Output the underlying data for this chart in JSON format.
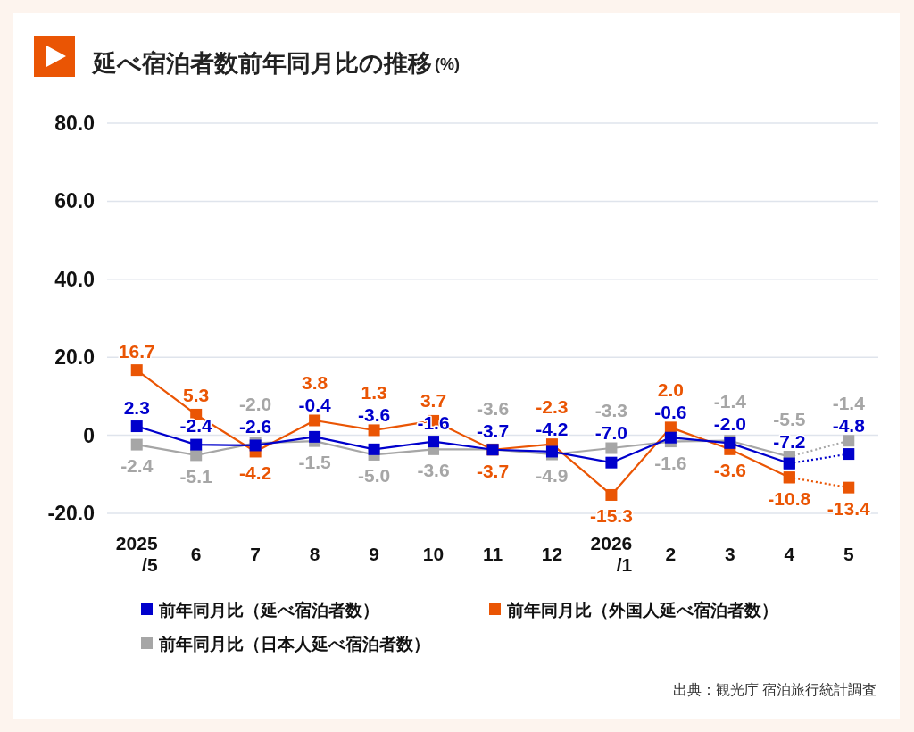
{
  "chart_data": {
    "type": "line",
    "title": "延べ宿泊者数前年同月比の推移",
    "subtitle": "(%)",
    "annotations": [
      "出典：観光庁 宿泊旅行統計調査"
    ],
    "categories": [
      "2025\n/5",
      "6",
      "7",
      "8",
      "9",
      "10",
      "11",
      "12",
      "2026\n/1",
      "2",
      "3",
      "4",
      "5"
    ],
    "ylim": [
      -20,
      80
    ],
    "yticks": [
      {
        "value": -20,
        "label": "-20.0"
      },
      0,
      {
        "value": 20,
        "label": "20.0"
      },
      {
        "value": 40,
        "label": "40.0"
      },
      {
        "value": 60,
        "label": "60.0"
      },
      {
        "value": 80,
        "label": "80.0"
      }
    ],
    "grid": "y",
    "legend": "bottom",
    "marker": "square",
    "line_style": "solid",
    "series": [
      {
        "name": "前年同月比（延べ宿泊者数）",
        "color": "#0000cc",
        "values": [
          2.3,
          -2.4,
          -2.6,
          -0.4,
          -3.6,
          -1.6,
          -3.7,
          -4.2,
          -7.0,
          -0.6,
          -2.0,
          -7.2,
          null
        ],
        "value_labels": [
          "2.3",
          "-2.4",
          "-2.6",
          "-0.4",
          "-3.6",
          "-1.6",
          "-3.7",
          "-4.2",
          "-7.0",
          "-0.6",
          "-2.0",
          "-7.2",
          null
        ]
      },
      {
        "name": "前年同月比（外国人延べ宿泊者数）",
        "color": "#ea5504",
        "values": [
          16.7,
          5.3,
          -4.2,
          3.8,
          1.3,
          3.7,
          -3.7,
          -2.3,
          -15.3,
          2.0,
          -3.6,
          -10.8,
          null
        ],
        "value_labels": [
          "16.7",
          "5.3",
          "-4.2",
          "3.8",
          "1.3",
          "3.7",
          "-3.7",
          "-2.3",
          "-15.3",
          "2.0",
          "-3.6",
          "-10.8",
          null
        ]
      },
      {
        "name": "前年同月比（日本人延べ宿泊者数）",
        "color": "#a6a6a6",
        "values": [
          -2.4,
          -5.1,
          -2.0,
          -1.5,
          -5.0,
          -3.6,
          -3.6,
          -4.9,
          -3.3,
          -1.6,
          -1.4,
          -5.5,
          null
        ],
        "value_labels": [
          "-2.4",
          "-5.1",
          "-2.0",
          "-1.5",
          "-5.0",
          "-3.6",
          "-3.6",
          "-4.9",
          "-3.3",
          "-1.6",
          "-1.4",
          "-5.5",
          null
        ]
      },
      {
        "color": "#0000cc",
        "values": [
          null,
          null,
          null,
          null,
          null,
          null,
          null,
          null,
          null,
          null,
          null,
          -7.2,
          -4.8
        ],
        "line_style": "dotted",
        "value_labels": [
          null,
          null,
          null,
          null,
          null,
          null,
          null,
          null,
          null,
          null,
          null,
          null,
          "-4.8"
        ]
      },
      {
        "color": "#ea5504",
        "values": [
          null,
          null,
          null,
          null,
          null,
          null,
          null,
          null,
          null,
          null,
          null,
          -10.8,
          -13.4
        ],
        "line_style": "dotted",
        "value_labels": [
          null,
          null,
          null,
          null,
          null,
          null,
          null,
          null,
          null,
          null,
          null,
          null,
          "-13.4"
        ]
      },
      {
        "color": "#a6a6a6",
        "values": [
          null,
          null,
          null,
          null,
          null,
          null,
          null,
          null,
          null,
          null,
          null,
          -5.5,
          -1.4
        ],
        "line_style": "dotted",
        "value_labels": [
          null,
          null,
          null,
          null,
          null,
          null,
          null,
          null,
          null,
          null,
          null,
          null,
          "-1.4"
        ]
      }
    ]
  }
}
